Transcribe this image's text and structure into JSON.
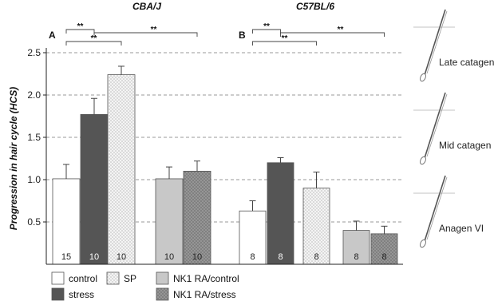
{
  "chart_data": {
    "type": "bar",
    "ylabel": "Progression in hair cycle (HCS)",
    "ylim": [
      0,
      2.5
    ],
    "yticks": [
      0.5,
      1.0,
      1.5,
      2.0,
      2.5
    ],
    "ytick_labels": [
      "0.5",
      "1.0",
      "1.5",
      "2.0",
      "2.5"
    ],
    "grid": "horizontal dashed",
    "panels": [
      {
        "letter": "A",
        "title": "CBA/J",
        "bars": [
          {
            "group": "control",
            "value": 1.01,
            "error": 0.17,
            "n": "15"
          },
          {
            "group": "stress",
            "value": 1.77,
            "error": 0.19,
            "n": "10"
          },
          {
            "group": "SP",
            "value": 2.24,
            "error": 0.1,
            "n": "10"
          },
          {
            "group": "NK1 RA/control",
            "value": 1.01,
            "error": 0.14,
            "n": "10"
          },
          {
            "group": "NK1 RA/stress",
            "value": 1.1,
            "error": 0.12,
            "n": "10"
          }
        ],
        "significance": [
          {
            "from": 0,
            "to": 1,
            "label": "**"
          },
          {
            "from": 1,
            "to": 4,
            "label": "**"
          },
          {
            "from": 0,
            "to": 2,
            "label": "**"
          }
        ]
      },
      {
        "letter": "B",
        "title": "C57BL/6",
        "bars": [
          {
            "group": "control",
            "value": 0.63,
            "error": 0.12,
            "n": "8"
          },
          {
            "group": "stress",
            "value": 1.2,
            "error": 0.06,
            "n": "8"
          },
          {
            "group": "SP",
            "value": 0.9,
            "error": 0.19,
            "n": "8"
          },
          {
            "group": "NK1 RA/control",
            "value": 0.4,
            "error": 0.11,
            "n": "8"
          },
          {
            "group": "NK1 RA/stress",
            "value": 0.36,
            "error": 0.09,
            "n": "8"
          }
        ],
        "significance": [
          {
            "from": 0,
            "to": 1,
            "label": "**"
          },
          {
            "from": 1,
            "to": 4,
            "label": "**"
          },
          {
            "from": 0,
            "to": 2,
            "label": "**"
          }
        ]
      }
    ],
    "legend": {
      "placement": "bottom",
      "items": [
        {
          "name": "control",
          "color": "#ffffff",
          "pattern": "none"
        },
        {
          "name": "stress",
          "color": "#555555",
          "pattern": "none"
        },
        {
          "name": "SP",
          "color": "#f2f2f2",
          "pattern": "dots"
        },
        {
          "name": "NK1 RA/control",
          "color": "#c8c8c8",
          "pattern": "none"
        },
        {
          "name": "NK1 RA/stress",
          "color": "#9a9a9a",
          "pattern": "crosshatch"
        }
      ]
    },
    "stage_labels": [
      {
        "text": "Late catagen",
        "value": 2.5
      },
      {
        "text": "Mid catagen",
        "value": 1.5
      },
      {
        "text": "Anagen VI",
        "value": 0.5
      }
    ]
  }
}
